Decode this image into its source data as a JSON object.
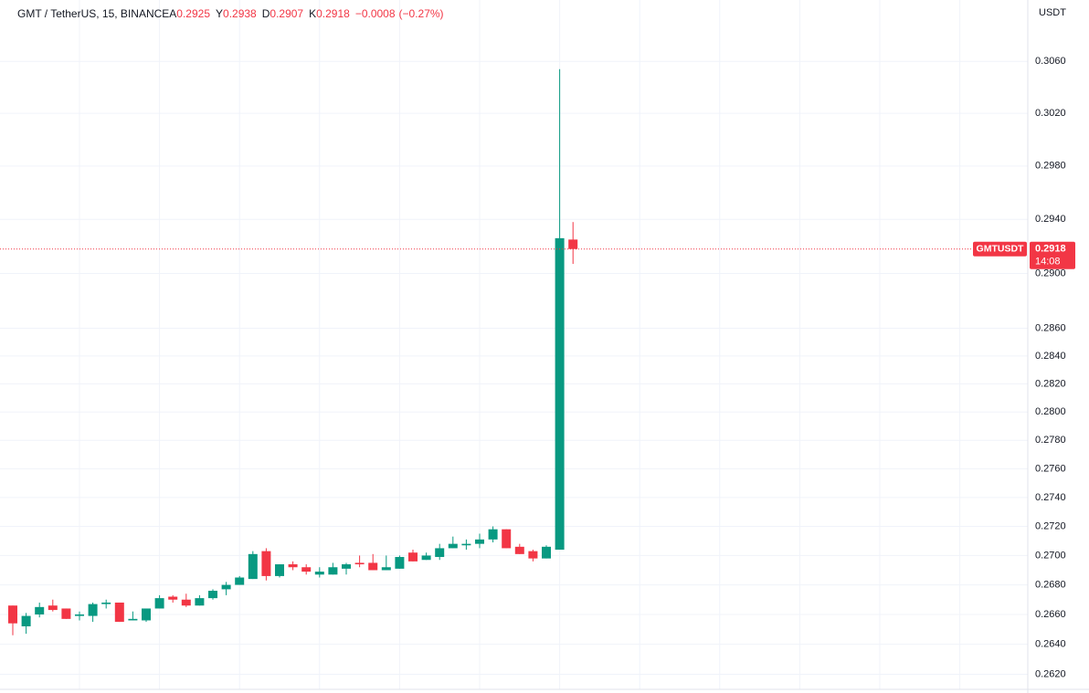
{
  "chart_data": {
    "type": "candlestick",
    "title": "GMT / TetherUS, 15, BINANCE",
    "legend": {
      "labels": [
        "A",
        "Y",
        "D",
        "K"
      ],
      "values": [
        0.2925,
        0.2938,
        0.2907,
        0.2918
      ],
      "change": {
        "value": -0.0008,
        "label": "−0.0008"
      },
      "change_pct": {
        "value": -0.27,
        "label": "(−0.27%)"
      }
    },
    "y_unit": "USDT",
    "symbol": "GMTUSDT",
    "last_price": 0.2918,
    "countdown": "14:08",
    "up_color": "#089981",
    "down_color": "#f23645",
    "log_scale": true,
    "grid": true,
    "ylim": [
      0.261,
      0.3108
    ],
    "yticks": [
      {
        "value": 0.306,
        "label": "0.3060"
      },
      {
        "value": 0.302,
        "label": "0.3020"
      },
      {
        "value": 0.298,
        "label": "0.2980"
      },
      {
        "value": 0.294,
        "label": "0.2940"
      },
      {
        "value": 0.29,
        "label": "0.2900"
      },
      {
        "value": 0.286,
        "label": "0.2860"
      },
      {
        "value": 0.284,
        "label": "0.2840"
      },
      {
        "value": 0.282,
        "label": "0.2820"
      },
      {
        "value": 0.28,
        "label": "0.2800"
      },
      {
        "value": 0.278,
        "label": "0.2780"
      },
      {
        "value": 0.276,
        "label": "0.2760"
      },
      {
        "value": 0.274,
        "label": "0.2740"
      },
      {
        "value": 0.272,
        "label": "0.2720"
      },
      {
        "value": 0.27,
        "label": "0.2700"
      },
      {
        "value": 0.268,
        "label": "0.2680"
      },
      {
        "value": 0.266,
        "label": "0.2660"
      },
      {
        "value": 0.264,
        "label": "0.2640"
      },
      {
        "value": 0.262,
        "label": "0.2620"
      }
    ],
    "open": [
      0.2666,
      0.2652,
      0.266,
      0.2666,
      0.2664,
      0.2659,
      0.2659,
      0.2667,
      0.2668,
      0.2656,
      0.2656,
      0.2664,
      0.2672,
      0.267,
      0.2666,
      0.2671,
      0.2677,
      0.268,
      0.2684,
      0.2703,
      0.2686,
      0.2694,
      0.2692,
      0.2687,
      0.2687,
      0.2691,
      0.2695,
      0.2695,
      0.269,
      0.2691,
      0.2702,
      0.2697,
      0.2699,
      0.2705,
      0.2707,
      0.2708,
      0.2711,
      0.2718,
      0.2706,
      0.2703,
      0.2698,
      0.2704,
      0.2925
    ],
    "high": [
      0.2666,
      0.2661,
      0.2668,
      0.267,
      0.2664,
      0.2662,
      0.2668,
      0.267,
      0.2668,
      0.2662,
      0.2664,
      0.2673,
      0.2673,
      0.2674,
      0.2673,
      0.2677,
      0.2682,
      0.2686,
      0.2703,
      0.2705,
      0.2694,
      0.2696,
      0.2694,
      0.2692,
      0.2695,
      0.2695,
      0.27,
      0.2701,
      0.27,
      0.27,
      0.2704,
      0.2702,
      0.2708,
      0.2713,
      0.2711,
      0.2715,
      0.272,
      0.2718,
      0.2708,
      0.2704,
      0.2707,
      0.3054,
      0.2938
    ],
    "low": [
      0.2646,
      0.2647,
      0.2658,
      0.2662,
      0.2657,
      0.2656,
      0.2655,
      0.2664,
      0.2655,
      0.2656,
      0.2655,
      0.2664,
      0.2668,
      0.2665,
      0.2666,
      0.267,
      0.2673,
      0.268,
      0.2684,
      0.2683,
      0.2685,
      0.269,
      0.2687,
      0.2685,
      0.2687,
      0.2687,
      0.2692,
      0.269,
      0.269,
      0.2691,
      0.2696,
      0.2697,
      0.2697,
      0.2705,
      0.2704,
      0.2705,
      0.2709,
      0.2705,
      0.2701,
      0.2696,
      0.2698,
      0.2704,
      0.2907
    ],
    "close": [
      0.2654,
      0.2659,
      0.2665,
      0.2663,
      0.2657,
      0.266,
      0.2667,
      0.2668,
      0.2655,
      0.2657,
      0.2664,
      0.2671,
      0.267,
      0.2666,
      0.2671,
      0.2676,
      0.268,
      0.2685,
      0.2701,
      0.2686,
      0.2694,
      0.2692,
      0.2689,
      0.2689,
      0.2692,
      0.2694,
      0.2694,
      0.269,
      0.2692,
      0.2699,
      0.2696,
      0.27,
      0.2705,
      0.2708,
      0.2708,
      0.2711,
      0.2718,
      0.2705,
      0.2701,
      0.2698,
      0.2706,
      0.2926,
      0.2918
    ]
  }
}
